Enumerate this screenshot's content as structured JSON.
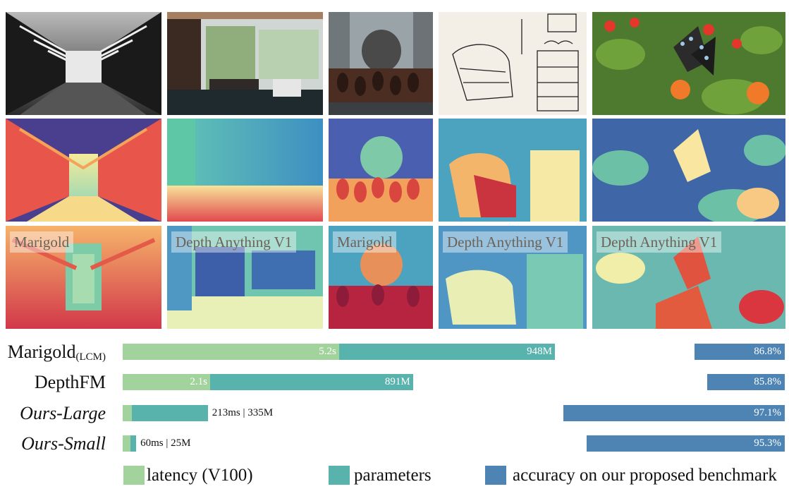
{
  "grid": {
    "columns": [
      "bridge",
      "interior",
      "battle-scene",
      "sketch-room",
      "butterfly"
    ],
    "overlay_labels": [
      "Marigold",
      "Depth Anything V1",
      "Marigold",
      "Depth Anything V1",
      "Depth Anything V1"
    ]
  },
  "chart_data": {
    "type": "bar",
    "categories": [
      "Marigold(LCM)",
      "DepthFM",
      "Ours-Large",
      "Ours-Small"
    ],
    "series": [
      {
        "name": "latency (V100)",
        "values": [
          "5.2s",
          "2.1s",
          "213ms",
          "60ms"
        ],
        "color": "#a3d39c"
      },
      {
        "name": "parameters",
        "values": [
          "948M",
          "891M",
          "335M",
          "25M"
        ],
        "color": "#59b3ad"
      },
      {
        "name": "accuracy on our proposed benchmark",
        "values": [
          86.8,
          85.8,
          97.1,
          95.3
        ],
        "unit": "%",
        "color": "#4d84b4"
      }
    ],
    "latency_seconds": [
      5.2,
      2.1,
      0.213,
      0.06
    ],
    "parameters_millions": [
      948,
      891,
      335,
      25
    ],
    "value_labels": {
      "latency": [
        "5.2s",
        "2.1s",
        "",
        ""
      ],
      "parameters": [
        "948M",
        "891M",
        "",
        ""
      ],
      "combined": [
        "",
        "",
        "213ms | 335M",
        "60ms | 25M"
      ],
      "accuracy": [
        "86.8%",
        "85.8%",
        "97.1%",
        "95.3%"
      ]
    },
    "accuracy_axis_range": [
      82,
      100
    ],
    "legend_placement": "bottom",
    "grid": false
  },
  "methods": {
    "marigold_main": "Marigold",
    "marigold_sub": "(LCM)",
    "depthfm": "DepthFM",
    "ours_large": "Ours-Large",
    "ours_small": "Ours-Small"
  },
  "legend": {
    "latency": "latency (V100)",
    "parameters": "parameters",
    "accuracy": "accuracy on our proposed benchmark"
  }
}
